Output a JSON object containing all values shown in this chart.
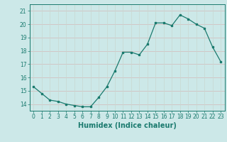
{
  "x": [
    0,
    1,
    2,
    3,
    4,
    5,
    6,
    7,
    8,
    9,
    10,
    11,
    12,
    13,
    14,
    15,
    16,
    17,
    18,
    19,
    20,
    21,
    22,
    23
  ],
  "y": [
    15.3,
    14.8,
    14.3,
    14.2,
    14.0,
    13.9,
    13.8,
    13.8,
    14.5,
    15.3,
    16.5,
    17.9,
    17.9,
    17.7,
    18.5,
    20.1,
    20.1,
    19.9,
    20.7,
    20.4,
    20.0,
    19.7,
    18.3,
    17.2
  ],
  "line_color": "#1a7a6e",
  "bg_color": "#cce8e8",
  "grid_color_h": "#d4b8b8",
  "grid_color_v": "#c8d8d0",
  "xlabel": "Humidex (Indice chaleur)",
  "xlim": [
    -0.5,
    23.5
  ],
  "ylim": [
    13.5,
    21.5
  ],
  "yticks": [
    14,
    15,
    16,
    17,
    18,
    19,
    20,
    21
  ],
  "xticks": [
    0,
    1,
    2,
    3,
    4,
    5,
    6,
    7,
    8,
    9,
    10,
    11,
    12,
    13,
    14,
    15,
    16,
    17,
    18,
    19,
    20,
    21,
    22,
    23
  ],
  "tick_fontsize": 5.5,
  "xlabel_fontsize": 7.0
}
